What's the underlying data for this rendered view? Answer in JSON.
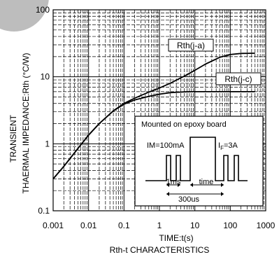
{
  "chart_data": {
    "type": "line",
    "title": "Rth-t CHARACTERISTICS",
    "xlabel": "TIME:t(s)",
    "ylabel_line1": "TRANSIENT",
    "ylabel_line2": "THAERMAL IMPEDANCE:Rth (°C/W)",
    "x_scale": "log",
    "y_scale": "log",
    "xlim": [
      0.001,
      1000
    ],
    "ylim": [
      0.1,
      100
    ],
    "x_ticks": [
      {
        "value": 0.001,
        "label": "0.001"
      },
      {
        "value": 0.01,
        "label": "0.01"
      },
      {
        "value": 0.1,
        "label": "0.1"
      },
      {
        "value": 1,
        "label": "1"
      },
      {
        "value": 10,
        "label": "10"
      },
      {
        "value": 100,
        "label": "100"
      },
      {
        "value": 1000,
        "label": "1000"
      }
    ],
    "y_ticks": [
      {
        "value": 0.1,
        "label": "0.1"
      },
      {
        "value": 1,
        "label": "1"
      },
      {
        "value": 10,
        "label": "10"
      },
      {
        "value": 100,
        "label": "100"
      }
    ],
    "grid": true,
    "series": [
      {
        "name": "Rth(j-a)",
        "x": [
          0.001,
          0.002,
          0.005,
          0.01,
          0.02,
          0.05,
          0.1,
          0.2,
          0.5,
          1,
          2,
          5,
          10,
          20,
          50,
          100,
          200,
          500
        ],
        "y": [
          0.3,
          0.46,
          0.85,
          1.35,
          2.0,
          3.1,
          4.0,
          4.8,
          5.9,
          6.8,
          8.0,
          10.2,
          12.5,
          15.5,
          19.5,
          21.5,
          22.3,
          22.5
        ]
      },
      {
        "name": "Rth(j-c)",
        "x": [
          0.001,
          0.002,
          0.005,
          0.01,
          0.02,
          0.05,
          0.1,
          0.2,
          0.5,
          1,
          2,
          5,
          10,
          20,
          50,
          100,
          200,
          500
        ],
        "y": [
          0.3,
          0.46,
          0.85,
          1.35,
          2.0,
          3.1,
          3.9,
          4.5,
          5.1,
          5.5,
          5.8,
          5.95,
          6.0,
          6.0,
          6.0,
          6.0,
          6.0,
          6.0
        ]
      }
    ],
    "inset": {
      "heading": "Mounted on epoxy board",
      "im_label": "IM=100mA",
      "if_label": "I",
      "if_sub": "F",
      "if_value": "=3A",
      "ms_label": "1ms",
      "time_label": "time",
      "us_label": "300us"
    }
  }
}
